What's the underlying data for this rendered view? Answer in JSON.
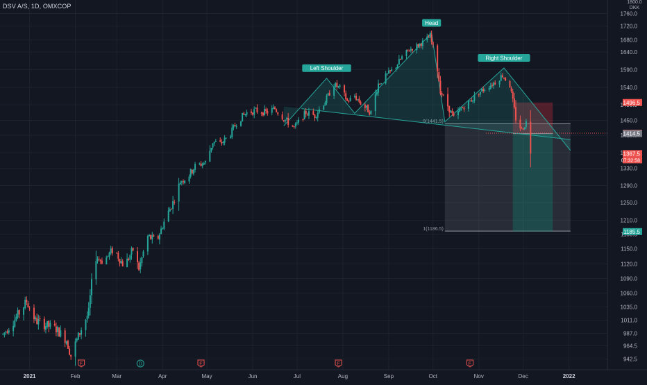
{
  "header": {
    "symbol": "DSV A/S, 1D, OMXCOP"
  },
  "axis": {
    "top_label": "1800.0",
    "currency": "DKK"
  },
  "colors": {
    "bg": "#131722",
    "grid": "#1e222d",
    "up": "#26a69a",
    "down": "#ef5350",
    "text": "#b2b5be",
    "pattern": "#26a69a"
  },
  "chart_data": {
    "type": "candlestick",
    "title": "DSV A/S, 1D, OMXCOP",
    "xlim": [
      "2020-12-12",
      "2022-01-27"
    ],
    "ylim": [
      930,
      1800
    ],
    "y_ticks": [
      942.5,
      964.5,
      987.0,
      1011.0,
      1035.0,
      1060.0,
      1090.0,
      1120.0,
      1150.0,
      1180.0,
      1210.0,
      1250.0,
      1290.0,
      1330.0,
      1370.0,
      1410.0,
      1450.0,
      1490.0,
      1540.0,
      1590.0,
      1640.0,
      1680.0,
      1720.0,
      1760.0
    ],
    "y_tick_labels": [
      "942.5",
      "964.5",
      "987.0",
      "1011.0",
      "1035.0",
      "1060.0",
      "1090.0",
      "1120.0",
      "1150.0",
      "1180.0",
      "1210.0",
      "1250.0",
      "1290.0",
      "1330.0",
      "1370.0",
      "1410.0",
      "1450.0",
      "1490.0",
      "1540.0",
      "1590.0",
      "1640.0",
      "1680.0",
      "1720.0",
      "1760.0"
    ],
    "x_ticks": [
      {
        "date": "2021-01-01",
        "label": "2021"
      },
      {
        "date": "2021-02-01",
        "label": "Feb"
      },
      {
        "date": "2021-03-01",
        "label": "Mar"
      },
      {
        "date": "2021-04-01",
        "label": "Apr"
      },
      {
        "date": "2021-05-01",
        "label": "May"
      },
      {
        "date": "2021-06-01",
        "label": "Jun"
      },
      {
        "date": "2021-07-01",
        "label": "Jul"
      },
      {
        "date": "2021-08-01",
        "label": "Aug"
      },
      {
        "date": "2021-09-01",
        "label": "Sep"
      },
      {
        "date": "2021-10-01",
        "label": "Oct"
      },
      {
        "date": "2021-11-01",
        "label": "Nov"
      },
      {
        "date": "2021-12-01",
        "label": "Dec"
      },
      {
        "date": "2022-01-01",
        "label": "2022"
      }
    ],
    "price_path": [
      [
        "2020-12-14",
        985
      ],
      [
        "2020-12-22",
        1012
      ],
      [
        "2020-12-30",
        1045
      ],
      [
        "2021-01-05",
        1010
      ],
      [
        "2021-01-12",
        1002
      ],
      [
        "2021-01-19",
        995
      ],
      [
        "2021-01-26",
        975
      ],
      [
        "2021-01-29",
        948
      ],
      [
        "2021-02-05",
        995
      ],
      [
        "2021-02-10",
        1025
      ],
      [
        "2021-02-14",
        1135
      ],
      [
        "2021-02-20",
        1125
      ],
      [
        "2021-02-27",
        1150
      ],
      [
        "2021-03-06",
        1115
      ],
      [
        "2021-03-12",
        1148
      ],
      [
        "2021-03-16",
        1110
      ],
      [
        "2021-03-22",
        1175
      ],
      [
        "2021-03-28",
        1165
      ],
      [
        "2021-04-03",
        1215
      ],
      [
        "2021-04-08",
        1250
      ],
      [
        "2021-04-13",
        1300
      ],
      [
        "2021-04-18",
        1310
      ],
      [
        "2021-04-23",
        1335
      ],
      [
        "2021-04-30",
        1345
      ],
      [
        "2021-05-05",
        1395
      ],
      [
        "2021-05-10",
        1390
      ],
      [
        "2021-05-16",
        1408
      ],
      [
        "2021-05-22",
        1450
      ],
      [
        "2021-05-28",
        1470
      ],
      [
        "2021-06-03",
        1475
      ],
      [
        "2021-06-10",
        1470
      ],
      [
        "2021-06-16",
        1480
      ],
      [
        "2021-06-22",
        1455
      ],
      [
        "2021-06-29",
        1430
      ],
      [
        "2021-07-07",
        1470
      ],
      [
        "2021-07-13",
        1462
      ],
      [
        "2021-07-20",
        1500
      ],
      [
        "2021-07-26",
        1548
      ],
      [
        "2021-07-31",
        1535
      ],
      [
        "2021-08-04",
        1500
      ],
      [
        "2021-08-09",
        1515
      ],
      [
        "2021-08-14",
        1490
      ],
      [
        "2021-08-20",
        1470
      ],
      [
        "2021-08-25",
        1550
      ],
      [
        "2021-08-31",
        1575
      ],
      [
        "2021-09-05",
        1595
      ],
      [
        "2021-09-10",
        1625
      ],
      [
        "2021-09-15",
        1648
      ],
      [
        "2021-09-20",
        1660
      ],
      [
        "2021-09-25",
        1675
      ],
      [
        "2021-09-29",
        1690
      ],
      [
        "2021-10-03",
        1620
      ],
      [
        "2021-10-06",
        1530
      ],
      [
        "2021-10-10",
        1495
      ],
      [
        "2021-10-15",
        1455
      ],
      [
        "2021-10-20",
        1480
      ],
      [
        "2021-10-26",
        1500
      ],
      [
        "2021-11-01",
        1525
      ],
      [
        "2021-11-06",
        1540
      ],
      [
        "2021-11-12",
        1555
      ],
      [
        "2021-11-17",
        1575
      ],
      [
        "2021-11-22",
        1545
      ],
      [
        "2021-11-26",
        1455
      ],
      [
        "2021-11-30",
        1425
      ],
      [
        "2021-12-03",
        1445
      ],
      [
        "2021-12-06",
        1368
      ]
    ],
    "pattern": {
      "type": "head-and-shoulders",
      "points": [
        {
          "date": "2021-06-22",
          "price": 1435
        },
        {
          "date": "2021-07-21",
          "price": 1566,
          "label": "Left Shoulder"
        },
        {
          "date": "2021-08-09",
          "price": 1468
        },
        {
          "date": "2021-09-30",
          "price": 1700,
          "label": "Head"
        },
        {
          "date": "2021-10-09",
          "price": 1446
        },
        {
          "date": "2021-11-18",
          "price": 1595,
          "label": "Right Shoulder"
        },
        {
          "date": "2022-01-02",
          "price": 1375
        }
      ],
      "neckline_start": {
        "date": "2021-07-04",
        "price": 1480
      },
      "neckline_end": {
        "date": "2022-01-02",
        "price": 1400
      }
    },
    "fib": {
      "start_date": "2021-10-09",
      "end_date": "2022-01-02",
      "level_0": 1441.5,
      "level_1": 1186.5,
      "label_0": "0(1441.5)",
      "label_1": "1(1186.5)"
    },
    "position": {
      "start_date": "2021-11-24",
      "end_date": "2021-12-21",
      "entry": 1414.5,
      "stop": 1496.5,
      "target": 1185.5
    },
    "current_price": 1367.5,
    "current_time": "07:32:58",
    "last_close_line": 1415.5,
    "price_tags": [
      {
        "value": 1496.5,
        "label": "1496.5",
        "color": "#ef5350"
      },
      {
        "value": 1415.5,
        "label": "1415.5",
        "color": "#ef5350"
      },
      {
        "value": 1414.5,
        "label": "1414.5",
        "color": "#787b86"
      },
      {
        "value": 1367.5,
        "label": "1367.5",
        "color": "#ef5350"
      },
      {
        "value": 1185.5,
        "label": "1185.5",
        "color": "#26a69a"
      }
    ],
    "event_markers": [
      {
        "date": "2021-02-05",
        "kind": "E"
      },
      {
        "date": "2021-03-17",
        "kind": "D"
      },
      {
        "date": "2021-04-27",
        "kind": "E"
      },
      {
        "date": "2021-07-29",
        "kind": "E"
      },
      {
        "date": "2021-10-26",
        "kind": "E"
      }
    ]
  }
}
